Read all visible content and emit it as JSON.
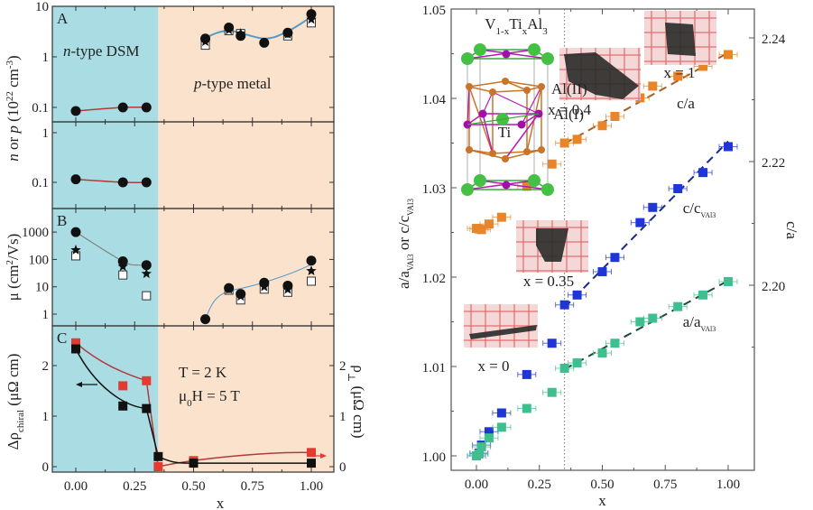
{
  "colors": {
    "dsm_region": "#a9dde3",
    "metal_region": "#fbe2cc",
    "red_series": "#e23b32",
    "black_series": "#111111",
    "blue_series": "#1f35d6",
    "green_series": "#3fbf8f",
    "orange_series": "#e8852a",
    "blue_fit": "#4f9ccc",
    "red_fit": "#b23a3a"
  },
  "chart_data": [
    {
      "id": "panel-A-carrier-density",
      "type": "scatter",
      "panel_label": "A",
      "xlim": [
        -0.15,
        1.15
      ],
      "ylim": [
        0.06,
        10
      ],
      "yscale": "log",
      "yticks": [
        "10",
        "1",
        "0.1"
      ],
      "ytick_values": [
        10,
        1,
        0.1
      ],
      "ylabel": "n or p (10^22 cm^-3)",
      "region_boundary_x": 0.35,
      "annotations": [
        "n-type DSM",
        "p-type metal"
      ],
      "series": [
        {
          "name": "n (DSM, filled circles)",
          "marker": "circle",
          "x": [
            0,
            0.2,
            0.3
          ],
          "y": [
            0.085,
            0.1,
            0.1
          ]
        },
        {
          "name": "p (metal, filled circles)",
          "marker": "circle",
          "x": [
            0.55,
            0.65,
            0.7,
            0.8,
            0.9,
            1.0
          ],
          "y": [
            2.3,
            3.8,
            2.6,
            1.9,
            3.0,
            7.0
          ]
        },
        {
          "name": "p (metal, stars)",
          "marker": "star",
          "x": [
            0.55,
            0.65,
            0.7,
            0.9,
            1.0
          ],
          "y": [
            2.0,
            3.4,
            2.9,
            2.8,
            5.5
          ]
        },
        {
          "name": "p (metal, open squares)",
          "marker": "open-square",
          "x": [
            0.55,
            0.65,
            0.7,
            0.9,
            1.0
          ],
          "y": [
            1.7,
            3.3,
            2.9,
            2.6,
            4.7
          ]
        }
      ]
    },
    {
      "id": "panel-A2-carrier-density",
      "type": "scatter",
      "xlim": [
        -0.15,
        1.15
      ],
      "ylim": [
        0.03,
        1.5
      ],
      "yscale": "log",
      "yticks": [
        "1",
        "0.1"
      ],
      "ytick_values": [
        1,
        0.1
      ],
      "series": [
        {
          "name": "n (DSM)",
          "marker": "circle",
          "x": [
            0,
            0.2,
            0.3
          ],
          "y": [
            0.115,
            0.1,
            0.1
          ]
        }
      ]
    },
    {
      "id": "panel-B-mobility",
      "type": "scatter",
      "panel_label": "B",
      "xlim": [
        -0.15,
        1.15
      ],
      "ylim": [
        0.5,
        6000
      ],
      "yscale": "log",
      "yticks": [
        "1000",
        "100",
        "10",
        "1"
      ],
      "ytick_values": [
        1000,
        100,
        10,
        1
      ],
      "ylabel": "μ (cm^2/Vs)",
      "series": [
        {
          "name": "filled circles",
          "marker": "circle",
          "x": [
            0,
            0.2,
            0.3,
            0.55,
            0.65,
            0.7,
            0.8,
            0.9,
            1.0
          ],
          "y": [
            1000,
            85,
            62,
            0.65,
            9,
            5.5,
            14,
            11,
            90
          ]
        },
        {
          "name": "stars",
          "marker": "star",
          "x": [
            0,
            0.2,
            0.3,
            0.65,
            0.7,
            0.8,
            0.9,
            1.0
          ],
          "y": [
            220,
            55,
            30,
            8,
            4.5,
            10,
            8,
            38
          ]
        },
        {
          "name": "open squares",
          "marker": "open-square",
          "x": [
            0,
            0.2,
            0.3,
            0.65,
            0.7,
            0.8,
            0.9,
            1.0
          ],
          "y": [
            135,
            27,
            4.7,
            7.5,
            3.3,
            8.2,
            6.3,
            16
          ]
        }
      ]
    },
    {
      "id": "panel-C-resistivity",
      "type": "line",
      "panel_label": "C",
      "xlim": [
        -0.15,
        1.15
      ],
      "ylim": [
        -0.1,
        2.7
      ],
      "xticks": [
        "0.00",
        "0.25",
        "0.50",
        "0.75",
        "1.00"
      ],
      "xtick_values": [
        0,
        0.25,
        0.5,
        0.75,
        1.0
      ],
      "yticks": [
        "0",
        "1",
        "2"
      ],
      "ytick_values": [
        0,
        1,
        2
      ],
      "right_yticks": [
        "0",
        "1",
        "2"
      ],
      "xlabel": "x",
      "ylabel": "Δρ_chiral (μΩ cm)",
      "right_ylabel": "ρ_⊥ (μΩ cm)",
      "annotations": [
        "T = 2 K",
        "μ0H = 5 T"
      ],
      "series": [
        {
          "name": "Δρ_chiral",
          "axis": "left",
          "marker": "square",
          "x": [
            0,
            0.2,
            0.3,
            0.35,
            0.5,
            1.0
          ],
          "y": [
            2.33,
            1.2,
            1.15,
            0.2,
            0.07,
            0.07
          ]
        },
        {
          "name": "ρ_⊥",
          "axis": "right",
          "marker": "square",
          "x": [
            0,
            0.2,
            0.3,
            0.35,
            0.5,
            1.0
          ],
          "y": [
            2.45,
            1.6,
            1.7,
            0.0,
            0.12,
            0.28
          ]
        }
      ]
    },
    {
      "id": "lattice-parameters",
      "type": "scatter",
      "title": "V1-xTixAl3",
      "xlim": [
        -0.1,
        1.08
      ],
      "ylim": [
        0.9985,
        1.05
      ],
      "xticks": [
        "0.00",
        "0.25",
        "0.50",
        "0.75",
        "1.00"
      ],
      "xtick_values": [
        0,
        0.25,
        0.5,
        0.75,
        1.0
      ],
      "yticks": [
        "1.00",
        "1.01",
        "1.02",
        "1.03",
        "1.04",
        "1.05"
      ],
      "ytick_values": [
        1.0,
        1.01,
        1.02,
        1.03,
        1.04,
        1.05
      ],
      "right_yticks": [
        "2.20",
        "2.22",
        "2.24"
      ],
      "right_ytick_values": [
        2.2,
        2.22,
        2.24
      ],
      "right_ylim": [
        2.1737,
        2.2461
      ],
      "xlabel": "x",
      "ylabel": "a/a_VAl3 or c/c_VAl3",
      "right_ylabel": "c/a",
      "vline_x": 0.35,
      "series_labels": [
        "c/a",
        "c/c_VAl3",
        "a/a_VAl3"
      ],
      "inset_labels": [
        "x = 1",
        "x = 0.4",
        "x = 0.35",
        "x = 0"
      ],
      "structure_labels": [
        "Al(II)",
        "Al(I)",
        "Ti"
      ],
      "series": [
        {
          "name": "c/a",
          "axis": "right",
          "x": [
            0,
            0.01,
            0.02,
            0.05,
            0.1,
            0.2,
            0.3,
            0.35,
            0.4,
            0.5,
            0.55,
            0.65,
            0.7,
            0.8,
            0.9,
            1.0
          ],
          "y": [
            2.2092,
            2.2091,
            2.209,
            2.2099,
            2.211,
            2.216,
            2.2196,
            2.223,
            2.2236,
            2.2258,
            2.2273,
            2.2303,
            2.2322,
            2.2338,
            2.2354,
            2.2373
          ]
        },
        {
          "name": "c/c_VAl3",
          "axis": "left",
          "x": [
            0,
            0.01,
            0.02,
            0.05,
            0.1,
            0.2,
            0.3,
            0.35,
            0.4,
            0.5,
            0.55,
            0.65,
            0.7,
            0.8,
            0.9,
            1.0
          ],
          "y": [
            1.0,
            1.0003,
            1.0012,
            1.0027,
            1.0048,
            1.0091,
            1.0126,
            1.0169,
            1.018,
            1.0206,
            1.0222,
            1.0261,
            1.0278,
            1.0299,
            1.0317,
            1.0346
          ]
        },
        {
          "name": "a/a_VAl3",
          "axis": "left",
          "x": [
            0,
            0.01,
            0.02,
            0.05,
            0.1,
            0.2,
            0.3,
            0.35,
            0.4,
            0.5,
            0.55,
            0.65,
            0.7,
            0.8,
            0.9,
            1.0
          ],
          "y": [
            1.0,
            1.0002,
            1.001,
            1.002,
            1.0032,
            1.0053,
            1.0071,
            1.0098,
            1.0104,
            1.0115,
            1.0126,
            1.015,
            1.0154,
            1.0167,
            1.018,
            1.0195
          ]
        }
      ]
    }
  ]
}
